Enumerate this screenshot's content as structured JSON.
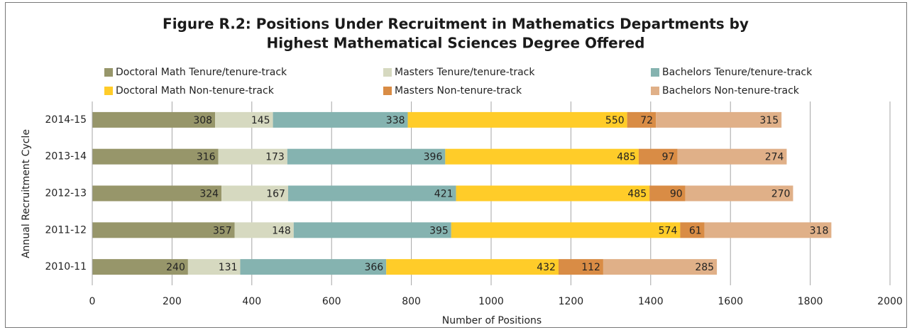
{
  "chart_data": {
    "type": "stacked-bar-horizontal",
    "title": [
      "Figure R.2: Positions Under Recruitment in Mathematics Departments by",
      "Highest Mathematical Sciences Degree Offered"
    ],
    "x_label": "Number of Positions",
    "y_label": "Annual Recruitment Cycle",
    "categories": [
      "2014-15",
      "2013-14",
      "2012-13",
      "2011-12",
      "2010-11"
    ],
    "series": [
      {
        "name": "Doctoral Math Tenure/tenure-track",
        "color": "#97966a",
        "values": [
          308,
          316,
          324,
          357,
          240
        ]
      },
      {
        "name": "Masters Tenure/tenure-track",
        "color": "#d6d9c0",
        "values": [
          145,
          173,
          167,
          148,
          131
        ]
      },
      {
        "name": "Bachelors Tenure/tenure-track",
        "color": "#85b3b0",
        "values": [
          338,
          396,
          421,
          395,
          366
        ]
      },
      {
        "name": "Doctoral Math Non-tenure-track",
        "color": "#ffcc29",
        "values": [
          550,
          485,
          485,
          574,
          432
        ]
      },
      {
        "name": "Masters Non-tenure-track",
        "color": "#d98c45",
        "values": [
          72,
          97,
          90,
          61,
          112
        ]
      },
      {
        "name": "Bachelors Non-tenure-track",
        "color": "#e0b088",
        "values": [
          315,
          274,
          270,
          318,
          285
        ]
      }
    ],
    "xlim": [
      0,
      2000
    ],
    "xticks": [
      0,
      200,
      400,
      600,
      800,
      1000,
      1200,
      1400,
      1600,
      1800,
      2000
    ],
    "grid": true,
    "legend": "top"
  }
}
